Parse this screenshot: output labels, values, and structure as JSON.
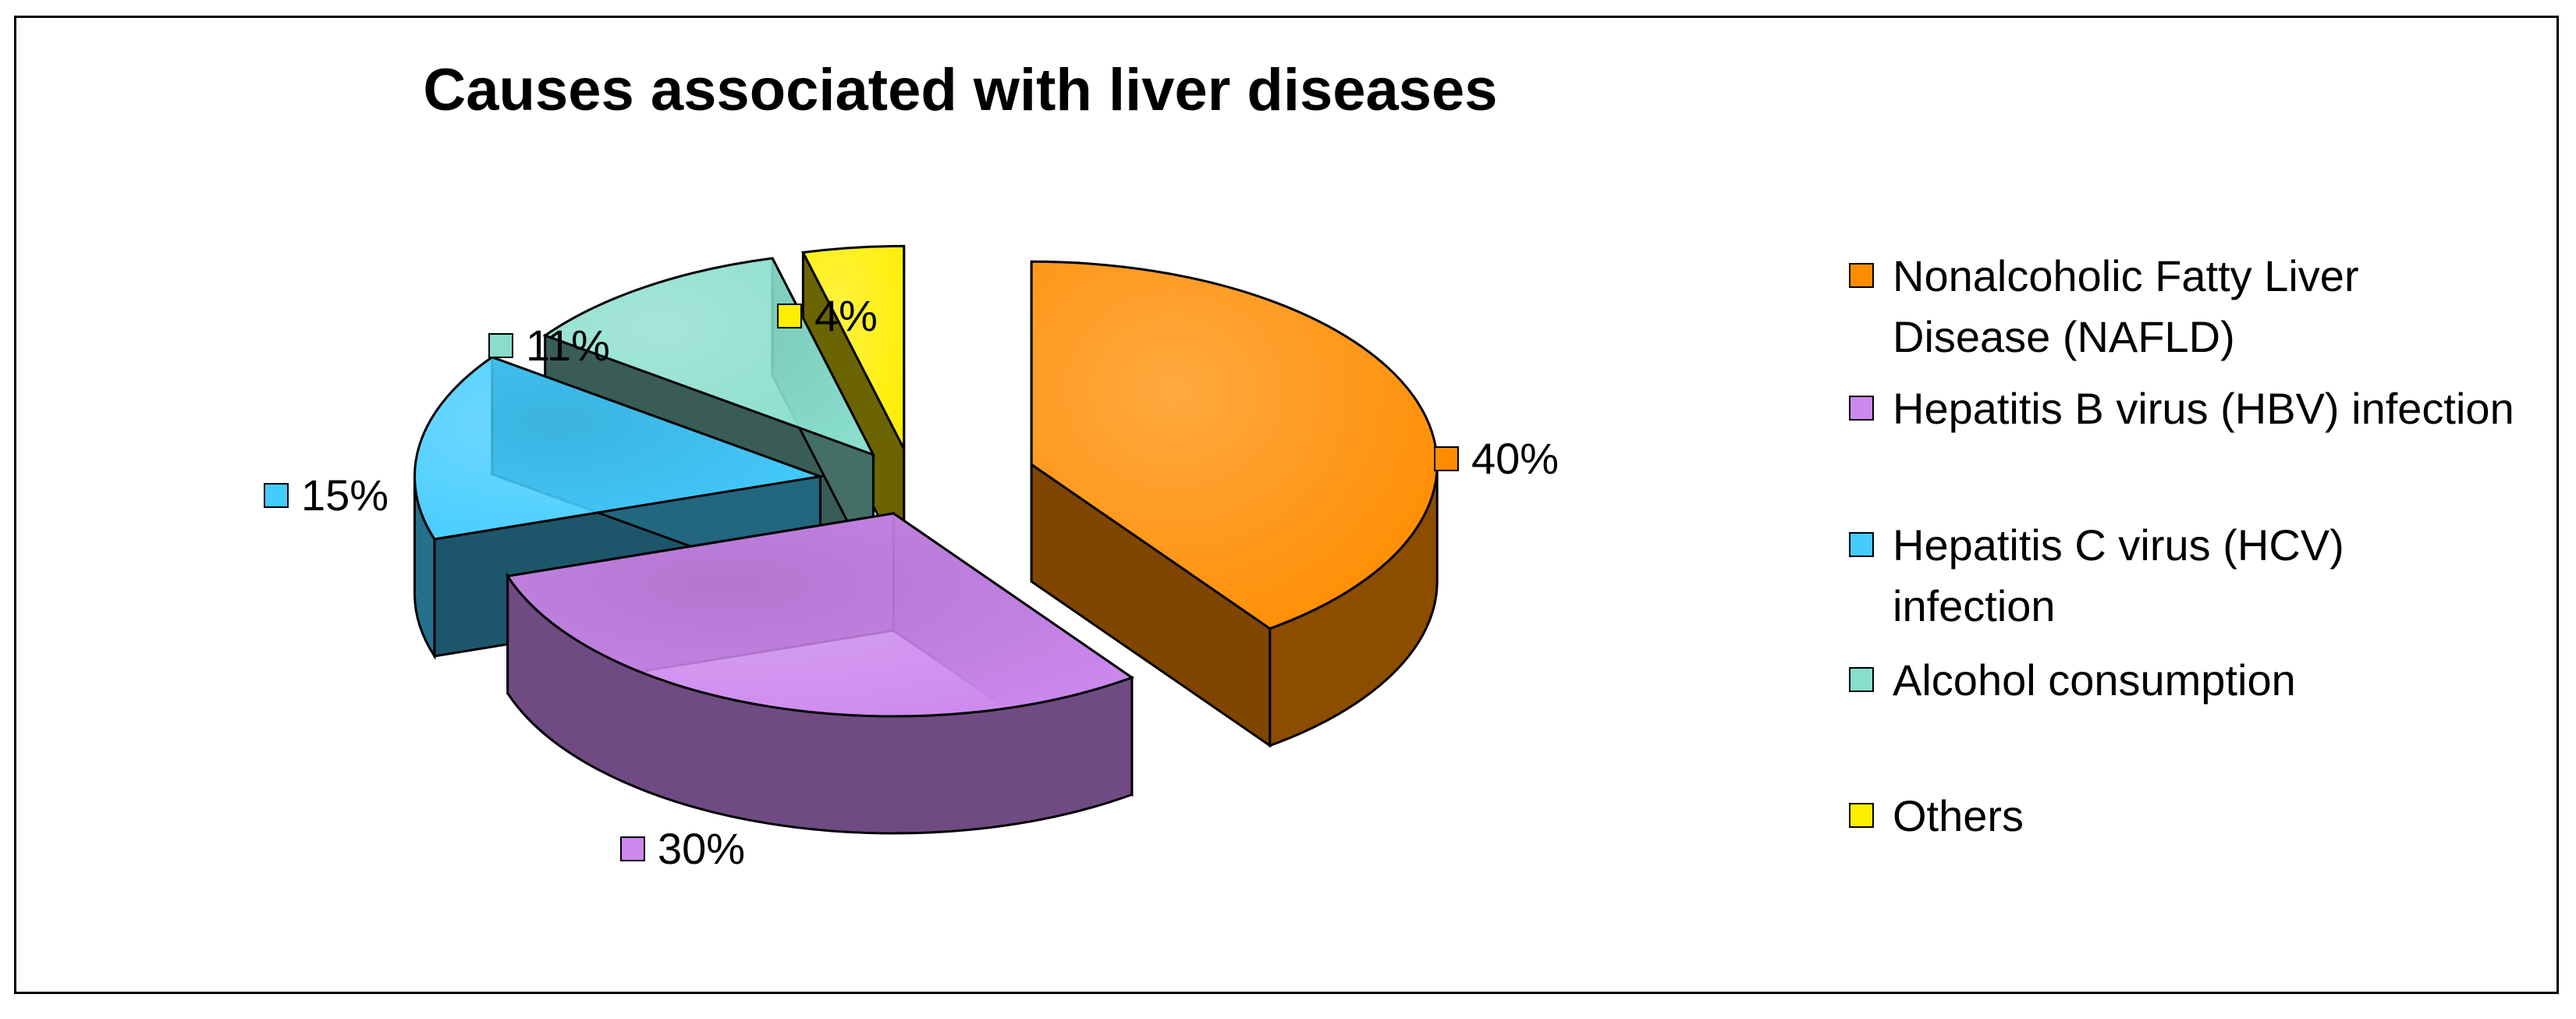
{
  "chart_data": {
    "type": "pie",
    "title": "Causes associated with liver diseases",
    "categories": [
      "Nonalcoholic Fatty Liver Disease (NAFLD)",
      "Hepatitis B virus (HBV) infection",
      "Hepatitis C virus (HCV) infection",
      "Alcohol consumption",
      "Others"
    ],
    "values": [
      40,
      30,
      15,
      11,
      4
    ],
    "value_labels": [
      "40%",
      "30%",
      "15%",
      "11%",
      "4%"
    ],
    "colors": [
      "#FF8C00",
      "#CC88EE",
      "#44CCFF",
      "#88DDCC",
      "#FFEE00"
    ],
    "legend_position": "right",
    "style": "3d-exploded"
  }
}
